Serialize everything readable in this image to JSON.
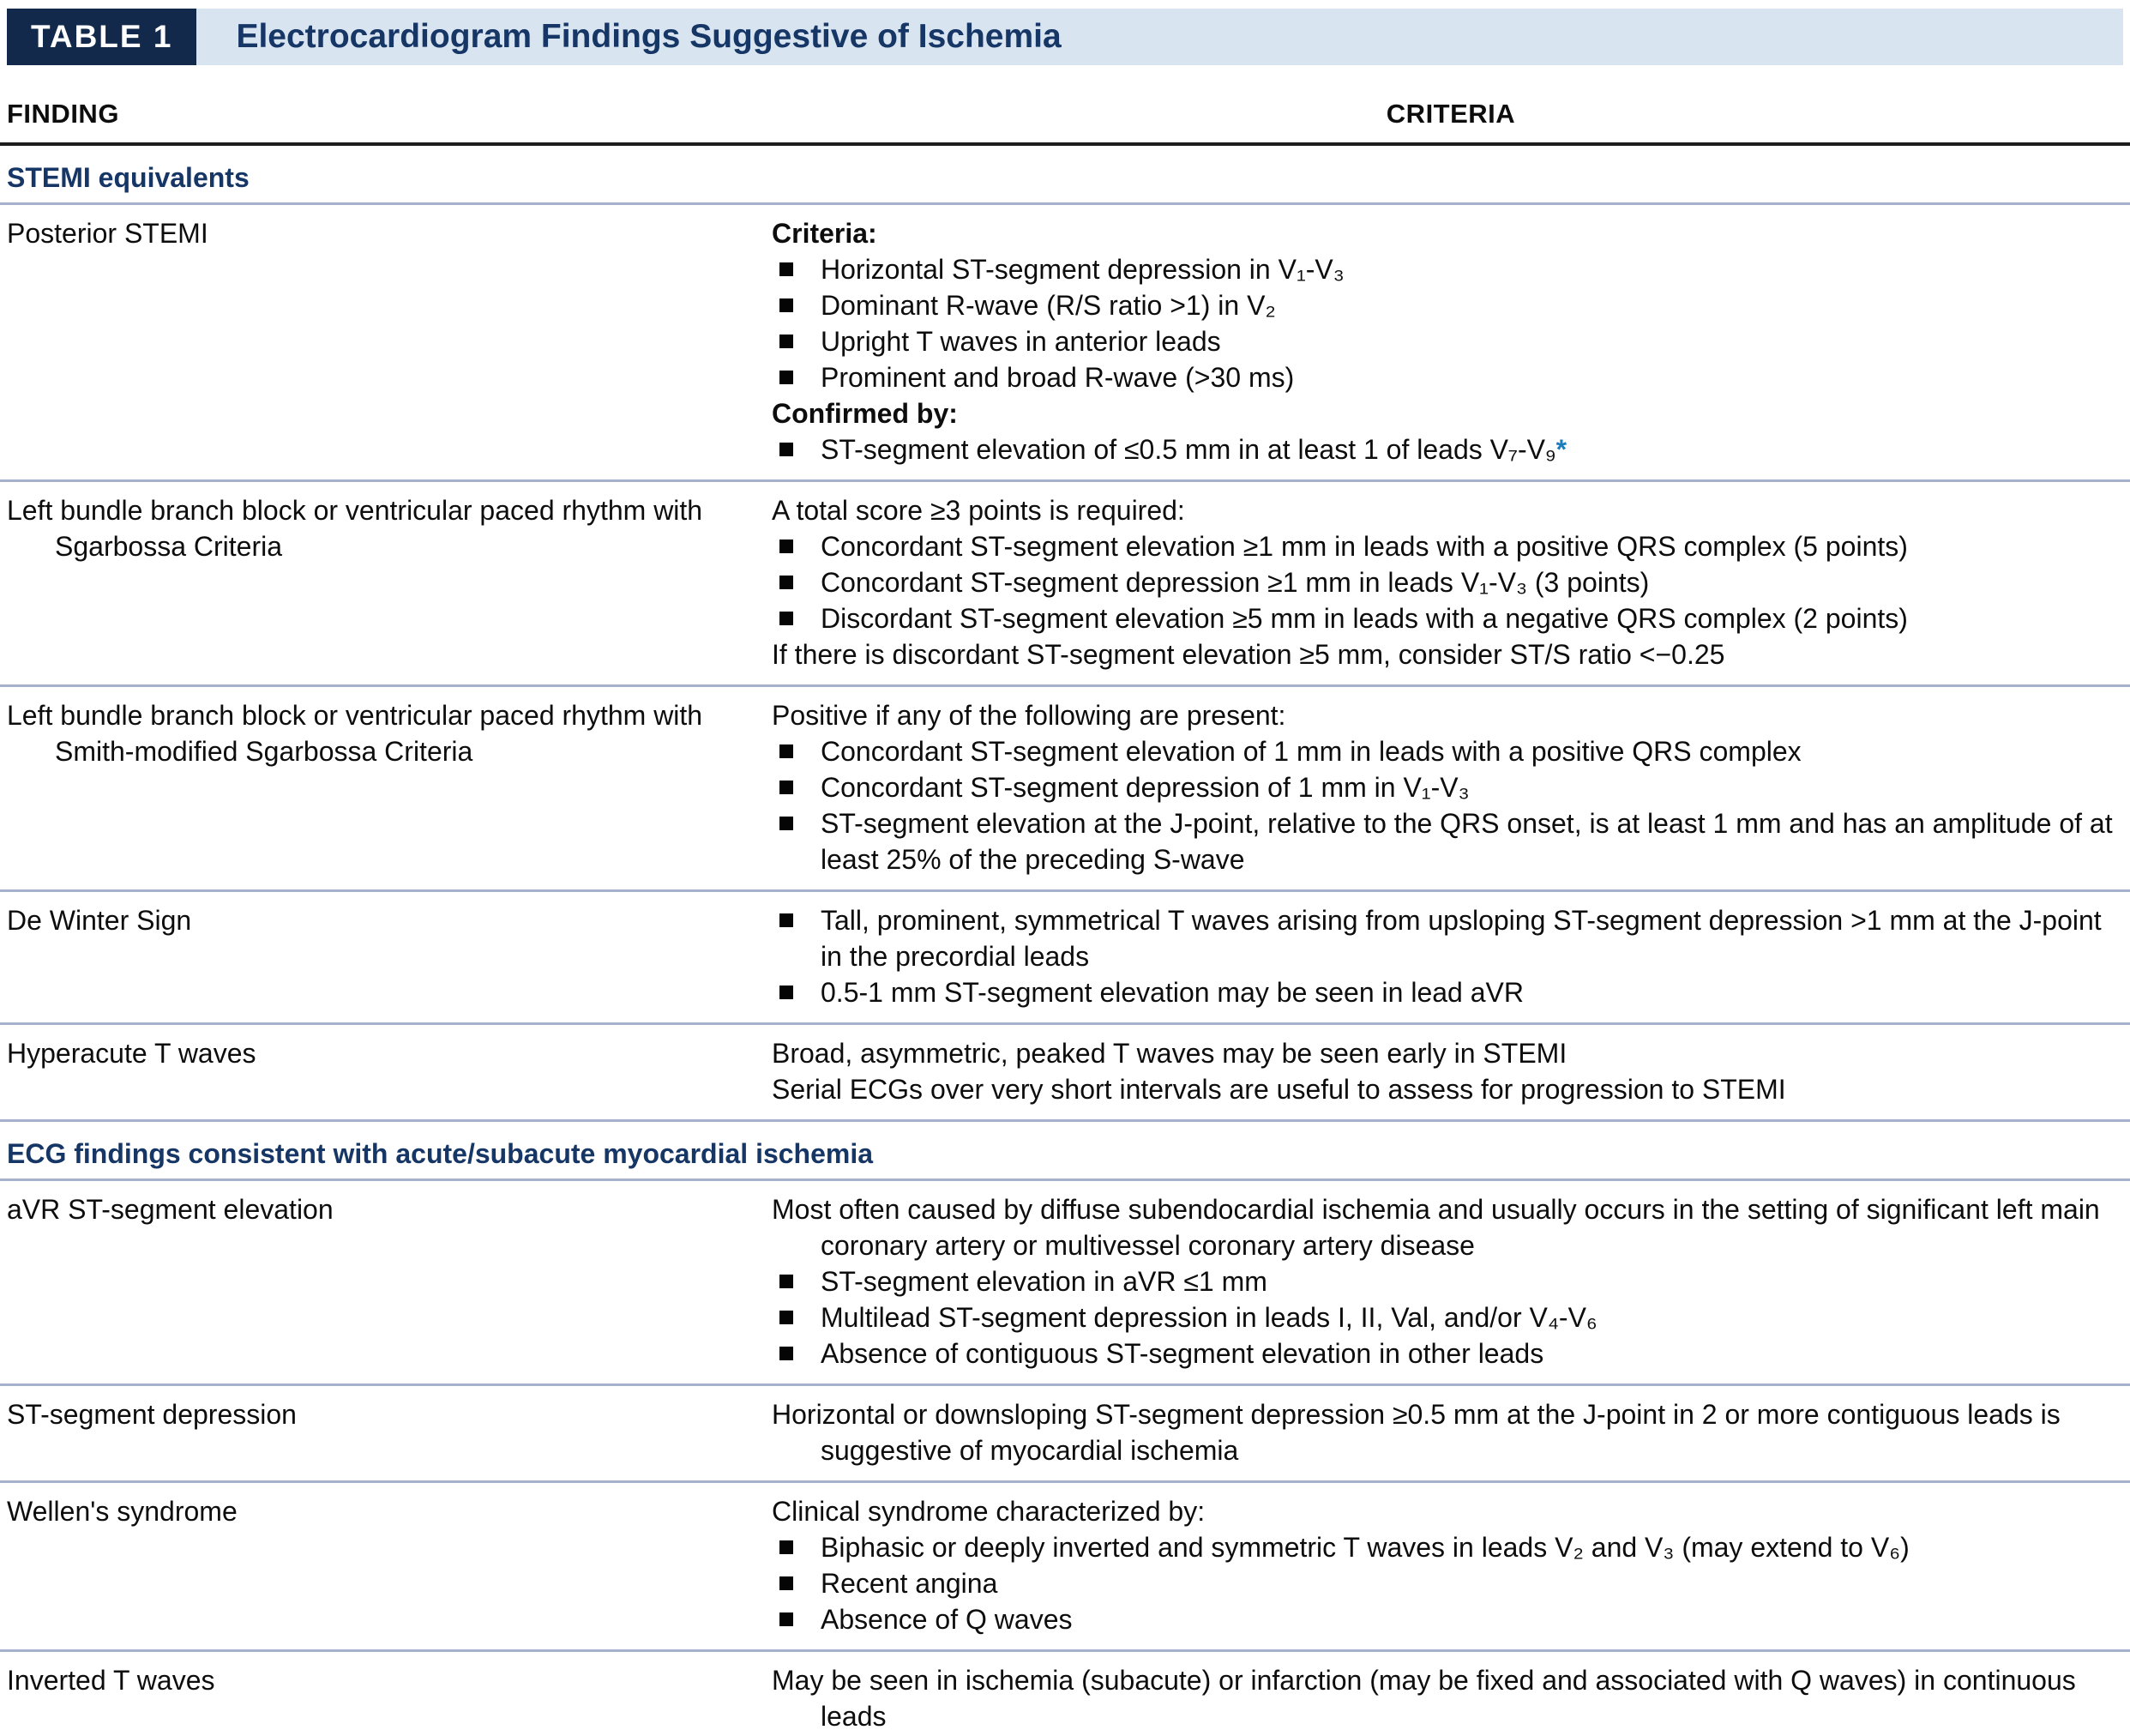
{
  "table": {
    "badge": "TABLE 1",
    "title": "Electrocardiogram Findings Suggestive of Ischemia",
    "columns": {
      "finding": "FINDING",
      "criteria": "CRITERIA"
    }
  },
  "colors": {
    "badge_background": "#12294c",
    "band_background": "#d9e4f1",
    "heading_navy": "#163666",
    "separator": "#a6b2cc",
    "rule": "#1b1b1b",
    "footnote_asterisk": "#1b7dbd"
  },
  "footnote_marker": "*",
  "rows": [
    {
      "type": "section",
      "label": "STEMI equivalents"
    },
    {
      "type": "row",
      "finding": "Posterior STEMI",
      "criteria": [
        {
          "style": "bold",
          "text": "Criteria:"
        },
        {
          "style": "bullet",
          "text": "Horizontal ST-segment depression in V₁-V₃"
        },
        {
          "style": "bullet",
          "text": "Dominant R-wave (R/S ratio >1) in V₂"
        },
        {
          "style": "bullet",
          "text": "Upright T waves in anterior leads"
        },
        {
          "style": "bullet",
          "text": "Prominent and broad R-wave (>30 ms)"
        },
        {
          "style": "bold",
          "text": "Confirmed by:"
        },
        {
          "style": "bullet",
          "text": "ST-segment elevation of ≤0.5 mm in at least 1 of leads V₇-V₉",
          "suffix": "*"
        }
      ]
    },
    {
      "type": "row",
      "finding": "Left bundle branch block or ventricular paced rhythm with Sgarbossa Criteria",
      "criteria": [
        {
          "style": "plain",
          "text": "A total score ≥3 points is required:"
        },
        {
          "style": "bullet",
          "text": "Concordant ST-segment elevation ≥1 mm in leads with a positive QRS complex (5 points)"
        },
        {
          "style": "bullet",
          "text": "Concordant ST-segment depression ≥1 mm in leads V₁-V₃ (3 points)"
        },
        {
          "style": "bullet",
          "text": "Discordant ST-segment elevation ≥5 mm in leads with a negative QRS complex (2 points)"
        },
        {
          "style": "plain",
          "text": "If there is discordant ST-segment elevation ≥5 mm, consider ST/S ratio <−0.25"
        }
      ]
    },
    {
      "type": "row",
      "finding": "Left bundle branch block or ventricular paced rhythm with Smith-modified Sgarbossa Criteria",
      "criteria": [
        {
          "style": "plain",
          "text": "Positive if any of the following are present:"
        },
        {
          "style": "bullet",
          "text": "Concordant ST-segment elevation of 1 mm in leads with a positive QRS complex"
        },
        {
          "style": "bullet",
          "text": "Concordant ST-segment depression of 1 mm in V₁-V₃"
        },
        {
          "style": "bullet",
          "text": "ST-segment elevation at the J-point, relative to the QRS onset, is at least 1 mm and has an amplitude of at least 25% of the preceding S-wave"
        }
      ]
    },
    {
      "type": "row",
      "finding": "De Winter Sign",
      "criteria": [
        {
          "style": "bullet",
          "text": "Tall, prominent, symmetrical T waves arising from upsloping ST-segment depression >1 mm at the J-point in the precordial leads"
        },
        {
          "style": "bullet",
          "text": "0.5-1 mm ST-segment elevation may be seen in lead aVR"
        }
      ]
    },
    {
      "type": "row",
      "finding": "Hyperacute T waves",
      "criteria": [
        {
          "style": "plain",
          "text": "Broad, asymmetric, peaked T waves may be seen early in STEMI"
        },
        {
          "style": "plain",
          "text": "Serial ECGs over very short intervals are useful to assess for progression to STEMI"
        }
      ]
    },
    {
      "type": "section",
      "label": "ECG findings consistent with acute/subacute myocardial ischemia"
    },
    {
      "type": "row",
      "finding": "aVR ST-segment elevation",
      "criteria": [
        {
          "style": "plain",
          "text": "Most often caused by diffuse subendocardial ischemia and usually occurs in the setting of significant left main coronary artery or multivessel coronary artery disease"
        },
        {
          "style": "bullet",
          "text": "ST-segment elevation in aVR ≤1 mm"
        },
        {
          "style": "bullet",
          "text": "Multilead ST-segment depression in leads I, II, Val, and/or V₄-V₆"
        },
        {
          "style": "bullet",
          "text": "Absence of contiguous ST-segment elevation in other leads"
        }
      ]
    },
    {
      "type": "row",
      "finding": "ST-segment depression",
      "criteria": [
        {
          "style": "plain",
          "text": "Horizontal or downsloping ST-segment depression ≥0.5 mm at the J-point in 2 or more contiguous leads is suggestive of myocardial ischemia"
        }
      ]
    },
    {
      "type": "row",
      "finding": "Wellen's syndrome",
      "criteria": [
        {
          "style": "plain",
          "text": "Clinical syndrome characterized by:"
        },
        {
          "style": "bullet",
          "text": "Biphasic or deeply inverted and symmetric T waves in leads V₂ and V₃ (may extend to V₆)"
        },
        {
          "style": "bullet",
          "text": "Recent angina"
        },
        {
          "style": "bullet",
          "text": "Absence of Q waves"
        }
      ]
    },
    {
      "type": "row",
      "finding": "Inverted T waves",
      "criteria": [
        {
          "style": "plain",
          "text": "May be seen in ischemia (subacute) or infarction (may be fixed and associated with Q waves) in continuous leads"
        }
      ]
    }
  ]
}
